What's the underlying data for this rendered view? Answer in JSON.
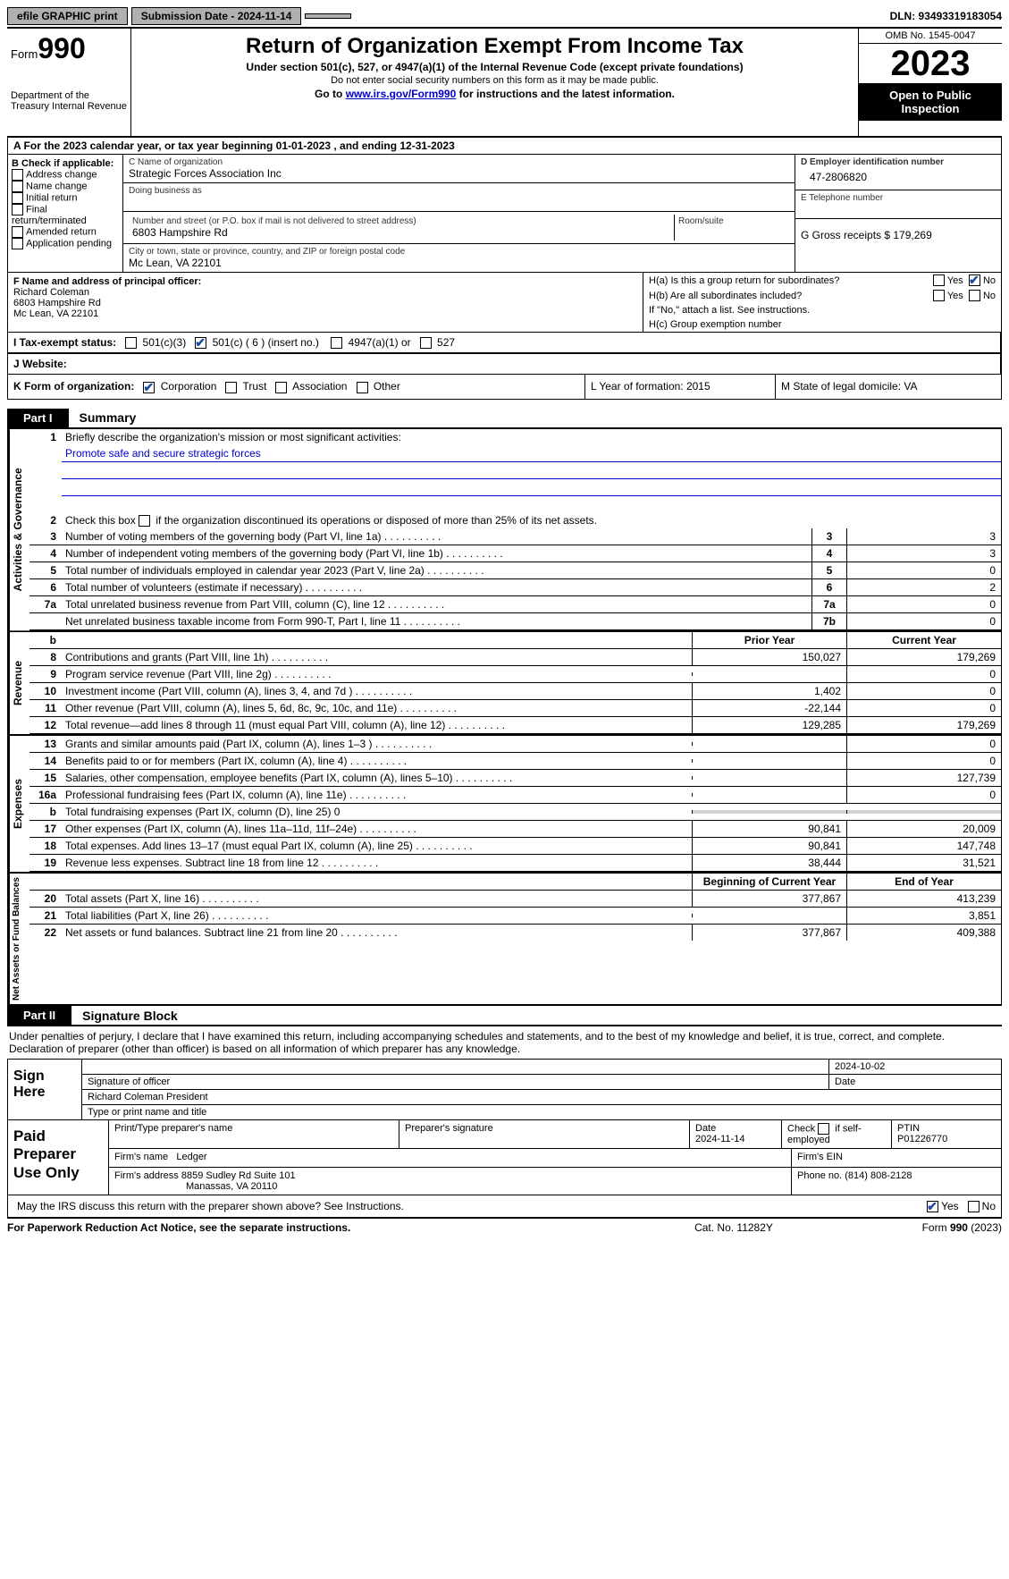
{
  "topbar": {
    "efile": "efile GRAPHIC print",
    "sub_label": "Submission Date - 2024-11-14",
    "dln_label": "DLN: 93493319183054"
  },
  "header": {
    "form_word": "Form",
    "form_num": "990",
    "dept": "Department of the Treasury Internal Revenue",
    "title": "Return of Organization Exempt From Income Tax",
    "sub1": "Under section 501(c), 527, or 4947(a)(1) of the Internal Revenue Code (except private foundations)",
    "sub2": "Do not enter social security numbers on this form as it may be made public.",
    "sub3_a": "Go to ",
    "sub3_link": "www.irs.gov/Form990",
    "sub3_b": " for instructions and the latest information.",
    "omb": "OMB No. 1545-0047",
    "year": "2023",
    "open": "Open to Public Inspection"
  },
  "A": {
    "text": "A For the 2023 calendar year, or tax year beginning 01-01-2023    , and ending 12-31-2023"
  },
  "B": {
    "hdr": "B Check if applicable:",
    "opts": [
      "Address change",
      "Name change",
      "Initial return",
      "Final return/terminated",
      "Amended return",
      "Application pending"
    ]
  },
  "C": {
    "name_label": "C Name of organization",
    "name": "Strategic Forces Association Inc",
    "dba_label": "Doing business as",
    "addr_label": "Number and street (or P.O. box if mail is not delivered to street address)",
    "addr": "6803 Hampshire Rd",
    "room_label": "Room/suite",
    "city_label": "City or town, state or province, country, and ZIP or foreign postal code",
    "city": "Mc Lean, VA  22101"
  },
  "D": {
    "label": "D Employer identification number",
    "val": "47-2806820"
  },
  "E": {
    "label": "E Telephone number"
  },
  "G": {
    "label": "G Gross receipts $ 179,269"
  },
  "F": {
    "label": "F  Name and address of principal officer:",
    "name": "Richard Coleman",
    "addr1": "6803 Hampshire Rd",
    "addr2": "Mc Lean, VA  22101"
  },
  "H": {
    "a": "H(a)  Is this a group return for subordinates?",
    "b": "H(b)  Are all subordinates included?",
    "b2": "If \"No,\" attach a list. See instructions.",
    "c": "H(c)  Group exemption number",
    "yes": "Yes",
    "no": "No"
  },
  "I": {
    "label": "I   Tax-exempt status:",
    "o1": "501(c)(3)",
    "o2": "501(c) ( 6 ) (insert no.)",
    "o3": "4947(a)(1) or",
    "o4": "527"
  },
  "J": {
    "label": "J   Website:"
  },
  "K": {
    "label": "K Form of organization:",
    "o1": "Corporation",
    "o2": "Trust",
    "o3": "Association",
    "o4": "Other"
  },
  "L": {
    "label": "L Year of formation: 2015"
  },
  "M": {
    "label": "M State of legal domicile: VA"
  },
  "part1": {
    "tab": "Part I",
    "title": "Summary",
    "l1": "Briefly describe the organization's mission or most significant activities:",
    "mission": "Promote safe and secure strategic forces",
    "l2": "Check this box          if the organization discontinued its operations or disposed of more than 25% of its net assets.",
    "lines_gov": [
      {
        "n": "3",
        "d": "Number of voting members of the governing body (Part VI, line 1a)",
        "box": "3",
        "v": "3"
      },
      {
        "n": "4",
        "d": "Number of independent voting members of the governing body (Part VI, line 1b)",
        "box": "4",
        "v": "3"
      },
      {
        "n": "5",
        "d": "Total number of individuals employed in calendar year 2023 (Part V, line 2a)",
        "box": "5",
        "v": "0"
      },
      {
        "n": "6",
        "d": "Total number of volunteers (estimate if necessary)",
        "box": "6",
        "v": "2"
      },
      {
        "n": "7a",
        "d": "Total unrelated business revenue from Part VIII, column (C), line 12",
        "box": "7a",
        "v": "0"
      },
      {
        "n": "",
        "d": "Net unrelated business taxable income from Form 990-T, Part I, line 11",
        "box": "7b",
        "v": "0"
      }
    ],
    "col_prior": "Prior Year",
    "col_curr": "Current Year",
    "lines_rev": [
      {
        "n": "8",
        "d": "Contributions and grants (Part VIII, line 1h)",
        "p": "150,027",
        "c": "179,269"
      },
      {
        "n": "9",
        "d": "Program service revenue (Part VIII, line 2g)",
        "p": "",
        "c": "0"
      },
      {
        "n": "10",
        "d": "Investment income (Part VIII, column (A), lines 3, 4, and 7d )",
        "p": "1,402",
        "c": "0"
      },
      {
        "n": "11",
        "d": "Other revenue (Part VIII, column (A), lines 5, 6d, 8c, 9c, 10c, and 11e)",
        "p": "-22,144",
        "c": "0"
      },
      {
        "n": "12",
        "d": "Total revenue—add lines 8 through 11 (must equal Part VIII, column (A), line 12)",
        "p": "129,285",
        "c": "179,269"
      }
    ],
    "lines_exp": [
      {
        "n": "13",
        "d": "Grants and similar amounts paid (Part IX, column (A), lines 1–3 )",
        "p": "",
        "c": "0"
      },
      {
        "n": "14",
        "d": "Benefits paid to or for members (Part IX, column (A), line 4)",
        "p": "",
        "c": "0"
      },
      {
        "n": "15",
        "d": "Salaries, other compensation, employee benefits (Part IX, column (A), lines 5–10)",
        "p": "",
        "c": "127,739"
      },
      {
        "n": "16a",
        "d": "Professional fundraising fees (Part IX, column (A), line 11e)",
        "p": "",
        "c": "0"
      },
      {
        "n": "b",
        "d": "Total fundraising expenses (Part IX, column (D), line 25) 0",
        "p": "shade",
        "c": "shade"
      },
      {
        "n": "17",
        "d": "Other expenses (Part IX, column (A), lines 11a–11d, 11f–24e)",
        "p": "90,841",
        "c": "20,009"
      },
      {
        "n": "18",
        "d": "Total expenses. Add lines 13–17 (must equal Part IX, column (A), line 25)",
        "p": "90,841",
        "c": "147,748"
      },
      {
        "n": "19",
        "d": "Revenue less expenses. Subtract line 18 from line 12",
        "p": "38,444",
        "c": "31,521"
      }
    ],
    "col_beg": "Beginning of Current Year",
    "col_end": "End of Year",
    "lines_net": [
      {
        "n": "20",
        "d": "Total assets (Part X, line 16)",
        "p": "377,867",
        "c": "413,239"
      },
      {
        "n": "21",
        "d": "Total liabilities (Part X, line 26)",
        "p": "",
        "c": "3,851"
      },
      {
        "n": "22",
        "d": "Net assets or fund balances. Subtract line 21 from line 20",
        "p": "377,867",
        "c": "409,388"
      }
    ],
    "vl_gov": "Activities & Governance",
    "vl_rev": "Revenue",
    "vl_exp": "Expenses",
    "vl_net": "Net Assets or Fund Balances"
  },
  "part2": {
    "tab": "Part II",
    "title": "Signature Block",
    "decl": "Under penalties of perjury, I declare that I have examined this return, including accompanying schedules and statements, and to the best of my knowledge and belief, it is true, correct, and complete. Declaration of preparer (other than officer) is based on all information of which preparer has any knowledge.",
    "sign_here": "Sign Here",
    "sig_date": "2024-10-02",
    "sig_lab": "Signature of officer",
    "date_lab": "Date",
    "officer": "Richard Coleman President",
    "type_lab": "Type or print name and title",
    "paid": "Paid Preparer Use Only",
    "pp_name": "Print/Type preparer's name",
    "pp_sig": "Preparer's signature",
    "pp_date": "Date",
    "pp_date_v": "2024-11-14",
    "pp_check": "Check          if self-employed",
    "ptin_lab": "PTIN",
    "ptin": "P01226770",
    "firm_name_lab": "Firm's name",
    "firm_name": "Ledger",
    "firm_ein": "Firm's EIN",
    "firm_addr_lab": "Firm's address",
    "firm_addr": "8859 Sudley Rd Suite 101",
    "firm_addr2": "Manassas, VA  20110",
    "phone_lab": "Phone no.",
    "phone": "(814) 808-2128",
    "discuss": "May the IRS discuss this return with the preparer shown above? See Instructions.",
    "yes": "Yes",
    "no": "No"
  },
  "footer": {
    "l": "For Paperwork Reduction Act Notice, see the separate instructions.",
    "m": "Cat. No. 11282Y",
    "r": "Form 990 (2023)"
  }
}
